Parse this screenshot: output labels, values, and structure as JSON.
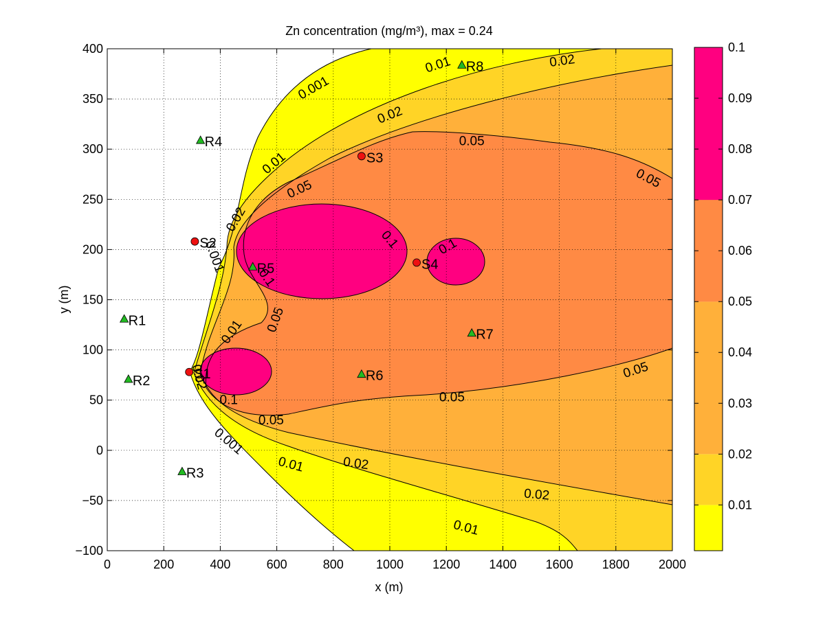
{
  "chart_data": {
    "type": "contour",
    "title": "Zn concentration (mg/m³), max =  0.24",
    "xlabel": "x (m)",
    "ylabel": "y (m)",
    "xlim": [
      0,
      2000
    ],
    "ylim": [
      -100,
      400
    ],
    "xticks": [
      0,
      200,
      400,
      600,
      800,
      1000,
      1200,
      1400,
      1600,
      1800,
      2000
    ],
    "yticks": [
      -100,
      -50,
      0,
      50,
      100,
      150,
      200,
      250,
      300,
      350,
      400
    ],
    "grid": true,
    "max_value": 0.24,
    "contour_levels": [
      0.001,
      0.01,
      0.02,
      0.05,
      0.1
    ],
    "colorbar": {
      "range": [
        0.001,
        0.1
      ],
      "ticks": [
        0.01,
        0.02,
        0.03,
        0.04,
        0.05,
        0.06,
        0.07,
        0.08,
        0.09,
        0.1
      ],
      "tick_labels": [
        "0.01",
        "0.02",
        "0.03",
        "0.04",
        "0.05",
        "0.06",
        "0.07",
        "0.08",
        "0.09",
        "0.1"
      ],
      "colors": [
        "#ffff00",
        "#ffd426",
        "#ffb03a",
        "#ff8a44",
        "#ff0080"
      ]
    },
    "sources": [
      {
        "label": "S1",
        "x": 290,
        "y": 78
      },
      {
        "label": "S2",
        "x": 310,
        "y": 208
      },
      {
        "label": "S3",
        "x": 900,
        "y": 293
      },
      {
        "label": "S4",
        "x": 1095,
        "y": 187
      }
    ],
    "receptors": [
      {
        "label": "R1",
        "x": 60,
        "y": 131
      },
      {
        "label": "R2",
        "x": 75,
        "y": 71
      },
      {
        "label": "R3",
        "x": 265,
        "y": -21
      },
      {
        "label": "R4",
        "x": 330,
        "y": 309
      },
      {
        "label": "R5",
        "x": 515,
        "y": 183
      },
      {
        "label": "R6",
        "x": 900,
        "y": 76
      },
      {
        "label": "R7",
        "x": 1290,
        "y": 117
      },
      {
        "label": "R8",
        "x": 1255,
        "y": 384
      }
    ],
    "contour_labels": [
      {
        "text": "0.001",
        "x": 730,
        "y": 361,
        "angle": -30
      },
      {
        "text": "0.01",
        "x": 1170,
        "y": 384,
        "angle": -18
      },
      {
        "text": "0.02",
        "x": 1610,
        "y": 388,
        "angle": -8
      },
      {
        "text": "0.02",
        "x": 1000,
        "y": 334,
        "angle": -22
      },
      {
        "text": "0.01",
        "x": 590,
        "y": 286,
        "angle": -40
      },
      {
        "text": "0.05",
        "x": 680,
        "y": 260,
        "angle": -25
      },
      {
        "text": "0.05",
        "x": 1290,
        "y": 308,
        "angle": 0
      },
      {
        "text": "0.05",
        "x": 1915,
        "y": 271,
        "angle": 28
      },
      {
        "text": "0.02",
        "x": 455,
        "y": 230,
        "angle": -60
      },
      {
        "text": "0.001",
        "x": 380,
        "y": 193,
        "angle": 70
      },
      {
        "text": "0.1",
        "x": 1000,
        "y": 210,
        "angle": 50
      },
      {
        "text": "0.1",
        "x": 1205,
        "y": 203,
        "angle": -30
      },
      {
        "text": "0.1",
        "x": 565,
        "y": 172,
        "angle": 55
      },
      {
        "text": "0.05",
        "x": 595,
        "y": 130,
        "angle": -70
      },
      {
        "text": "0.01",
        "x": 440,
        "y": 118,
        "angle": -55
      },
      {
        "text": "0.02",
        "x": 325,
        "y": 73,
        "angle": 75
      },
      {
        "text": "0.1",
        "x": 430,
        "y": 50,
        "angle": 0
      },
      {
        "text": "0.05",
        "x": 580,
        "y": 30,
        "angle": 0
      },
      {
        "text": "0.05",
        "x": 1220,
        "y": 53,
        "angle": 0
      },
      {
        "text": "0.05",
        "x": 1870,
        "y": 80,
        "angle": -18
      },
      {
        "text": "0.001",
        "x": 430,
        "y": 9,
        "angle": 40
      },
      {
        "text": "0.01",
        "x": 650,
        "y": -14,
        "angle": 15
      },
      {
        "text": "0.02",
        "x": 880,
        "y": -13,
        "angle": 8
      },
      {
        "text": "0.02",
        "x": 1520,
        "y": -44,
        "angle": 5
      },
      {
        "text": "0.01",
        "x": 1270,
        "y": -77,
        "angle": 15
      }
    ]
  }
}
